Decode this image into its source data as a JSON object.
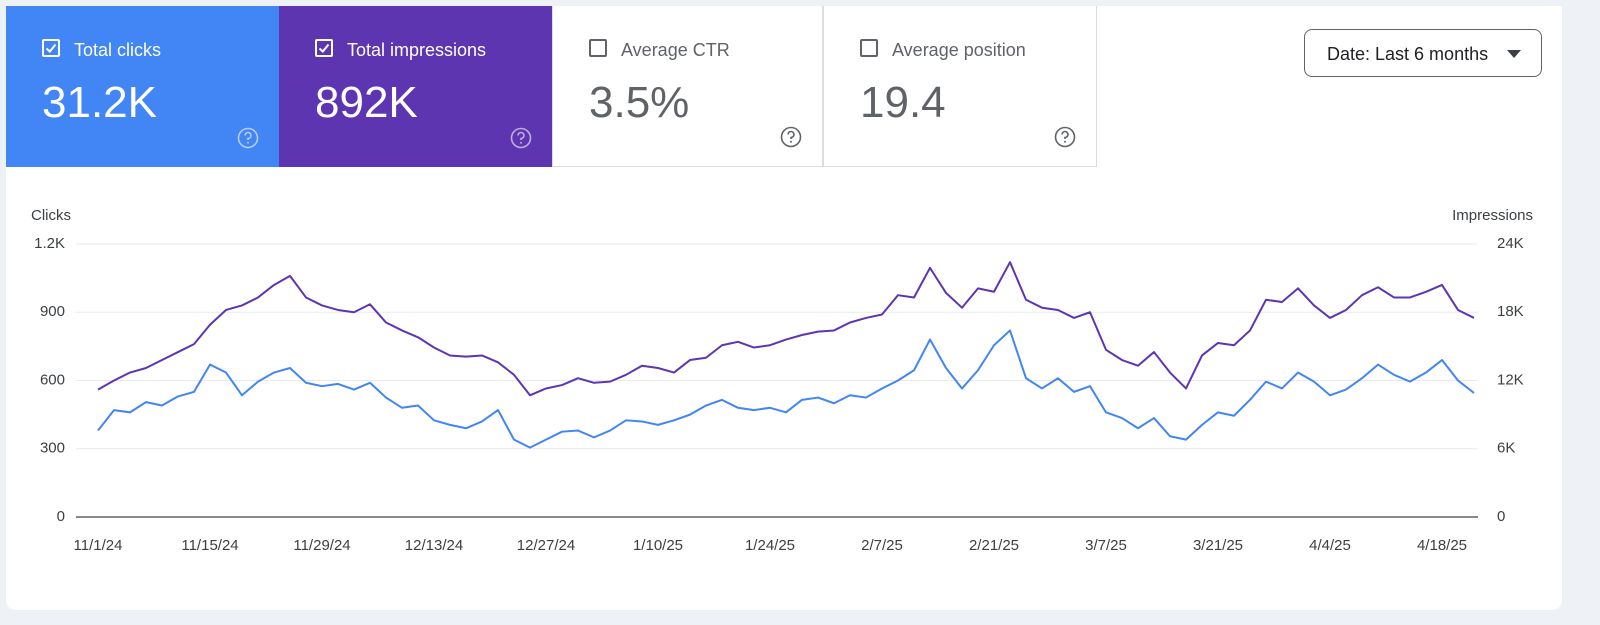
{
  "cards": [
    {
      "label": "Total clicks",
      "value": "31.2K",
      "checked": true,
      "color": "#4285f4"
    },
    {
      "label": "Total impressions",
      "value": "892K",
      "checked": true,
      "color": "#5e35b1"
    },
    {
      "label": "Average CTR",
      "value": "3.5%",
      "checked": false,
      "color": "#ffffff"
    },
    {
      "label": "Average position",
      "value": "19.4",
      "checked": false,
      "color": "#ffffff"
    }
  ],
  "date_button": "Date: Last 6 months",
  "chart_data": {
    "type": "line",
    "y_label": "Clicks",
    "y2_label": "Impressions",
    "categories": [
      "11/1/24",
      null,
      null,
      null,
      null,
      null,
      null,
      "11/15/24",
      null,
      null,
      null,
      null,
      null,
      null,
      "11/29/24",
      null,
      null,
      null,
      null,
      null,
      null,
      "12/13/24",
      null,
      null,
      null,
      null,
      null,
      null,
      "12/27/24",
      null,
      null,
      null,
      null,
      null,
      null,
      "1/10/25",
      null,
      null,
      null,
      null,
      null,
      null,
      "1/24/25",
      null,
      null,
      null,
      null,
      null,
      null,
      "2/7/25",
      null,
      null,
      null,
      null,
      null,
      null,
      "2/21/25",
      null,
      null,
      null,
      null,
      null,
      null,
      "3/7/25",
      null,
      null,
      null,
      null,
      null,
      null,
      "3/21/25",
      null,
      null,
      null,
      null,
      null,
      null,
      "4/4/25",
      null,
      null,
      null,
      null,
      null,
      null,
      "4/18/25",
      null,
      null
    ],
    "series": [
      {
        "name": "Clicks",
        "color": "#4285f4",
        "axis": "y",
        "values": [
          380,
          470,
          460,
          505,
          490,
          530,
          550,
          670,
          635,
          535,
          595,
          635,
          655,
          590,
          575,
          585,
          560,
          590,
          525,
          480,
          490,
          425,
          405,
          390,
          420,
          470,
          340,
          305,
          340,
          375,
          380,
          350,
          380,
          425,
          420,
          405,
          425,
          450,
          490,
          515,
          480,
          470,
          480,
          460,
          515,
          525,
          500,
          535,
          525,
          565,
          600,
          645,
          780,
          655,
          565,
          645,
          755,
          820,
          610,
          565,
          610,
          550,
          575,
          460,
          435,
          390,
          435,
          355,
          340,
          405,
          460,
          445,
          515,
          595,
          565,
          635,
          595,
          535,
          560,
          610,
          670,
          625,
          595,
          635,
          690,
          600,
          545
        ]
      },
      {
        "name": "Impressions",
        "color": "#5e35b1",
        "axis": "y2",
        "values": [
          11200,
          12000,
          12700,
          13100,
          13800,
          14500,
          15200,
          16900,
          18200,
          18600,
          19300,
          20400,
          21200,
          19300,
          18600,
          18200,
          18000,
          18700,
          17100,
          16400,
          15800,
          14900,
          14200,
          14100,
          14200,
          13600,
          12500,
          10700,
          11300,
          11600,
          12200,
          11800,
          11900,
          12500,
          13300,
          13100,
          12700,
          13800,
          14000,
          15100,
          15400,
          14900,
          15100,
          15600,
          16000,
          16300,
          16400,
          17100,
          17500,
          17800,
          19500,
          19300,
          21900,
          19700,
          18400,
          20100,
          19800,
          22400,
          19100,
          18400,
          18200,
          17500,
          18000,
          14700,
          13800,
          13300,
          14500,
          12700,
          11300,
          14200,
          15300,
          15100,
          16400,
          19100,
          18900,
          20100,
          18600,
          17500,
          18200,
          19500,
          20200,
          19300,
          19300,
          19800,
          20400,
          18200,
          17500
        ]
      }
    ],
    "ylim": [
      0,
      1200
    ],
    "yticks": [
      0,
      300,
      600,
      900,
      {
        "value": 1200,
        "label": "1.2K"
      }
    ],
    "y2lim": [
      0,
      24000
    ],
    "y2ticks": [
      0,
      {
        "value": 6000,
        "label": "6K"
      },
      {
        "value": 12000,
        "label": "12K"
      },
      {
        "value": 18000,
        "label": "18K"
      },
      {
        "value": 24000,
        "label": "24K"
      }
    ],
    "grid": true
  }
}
